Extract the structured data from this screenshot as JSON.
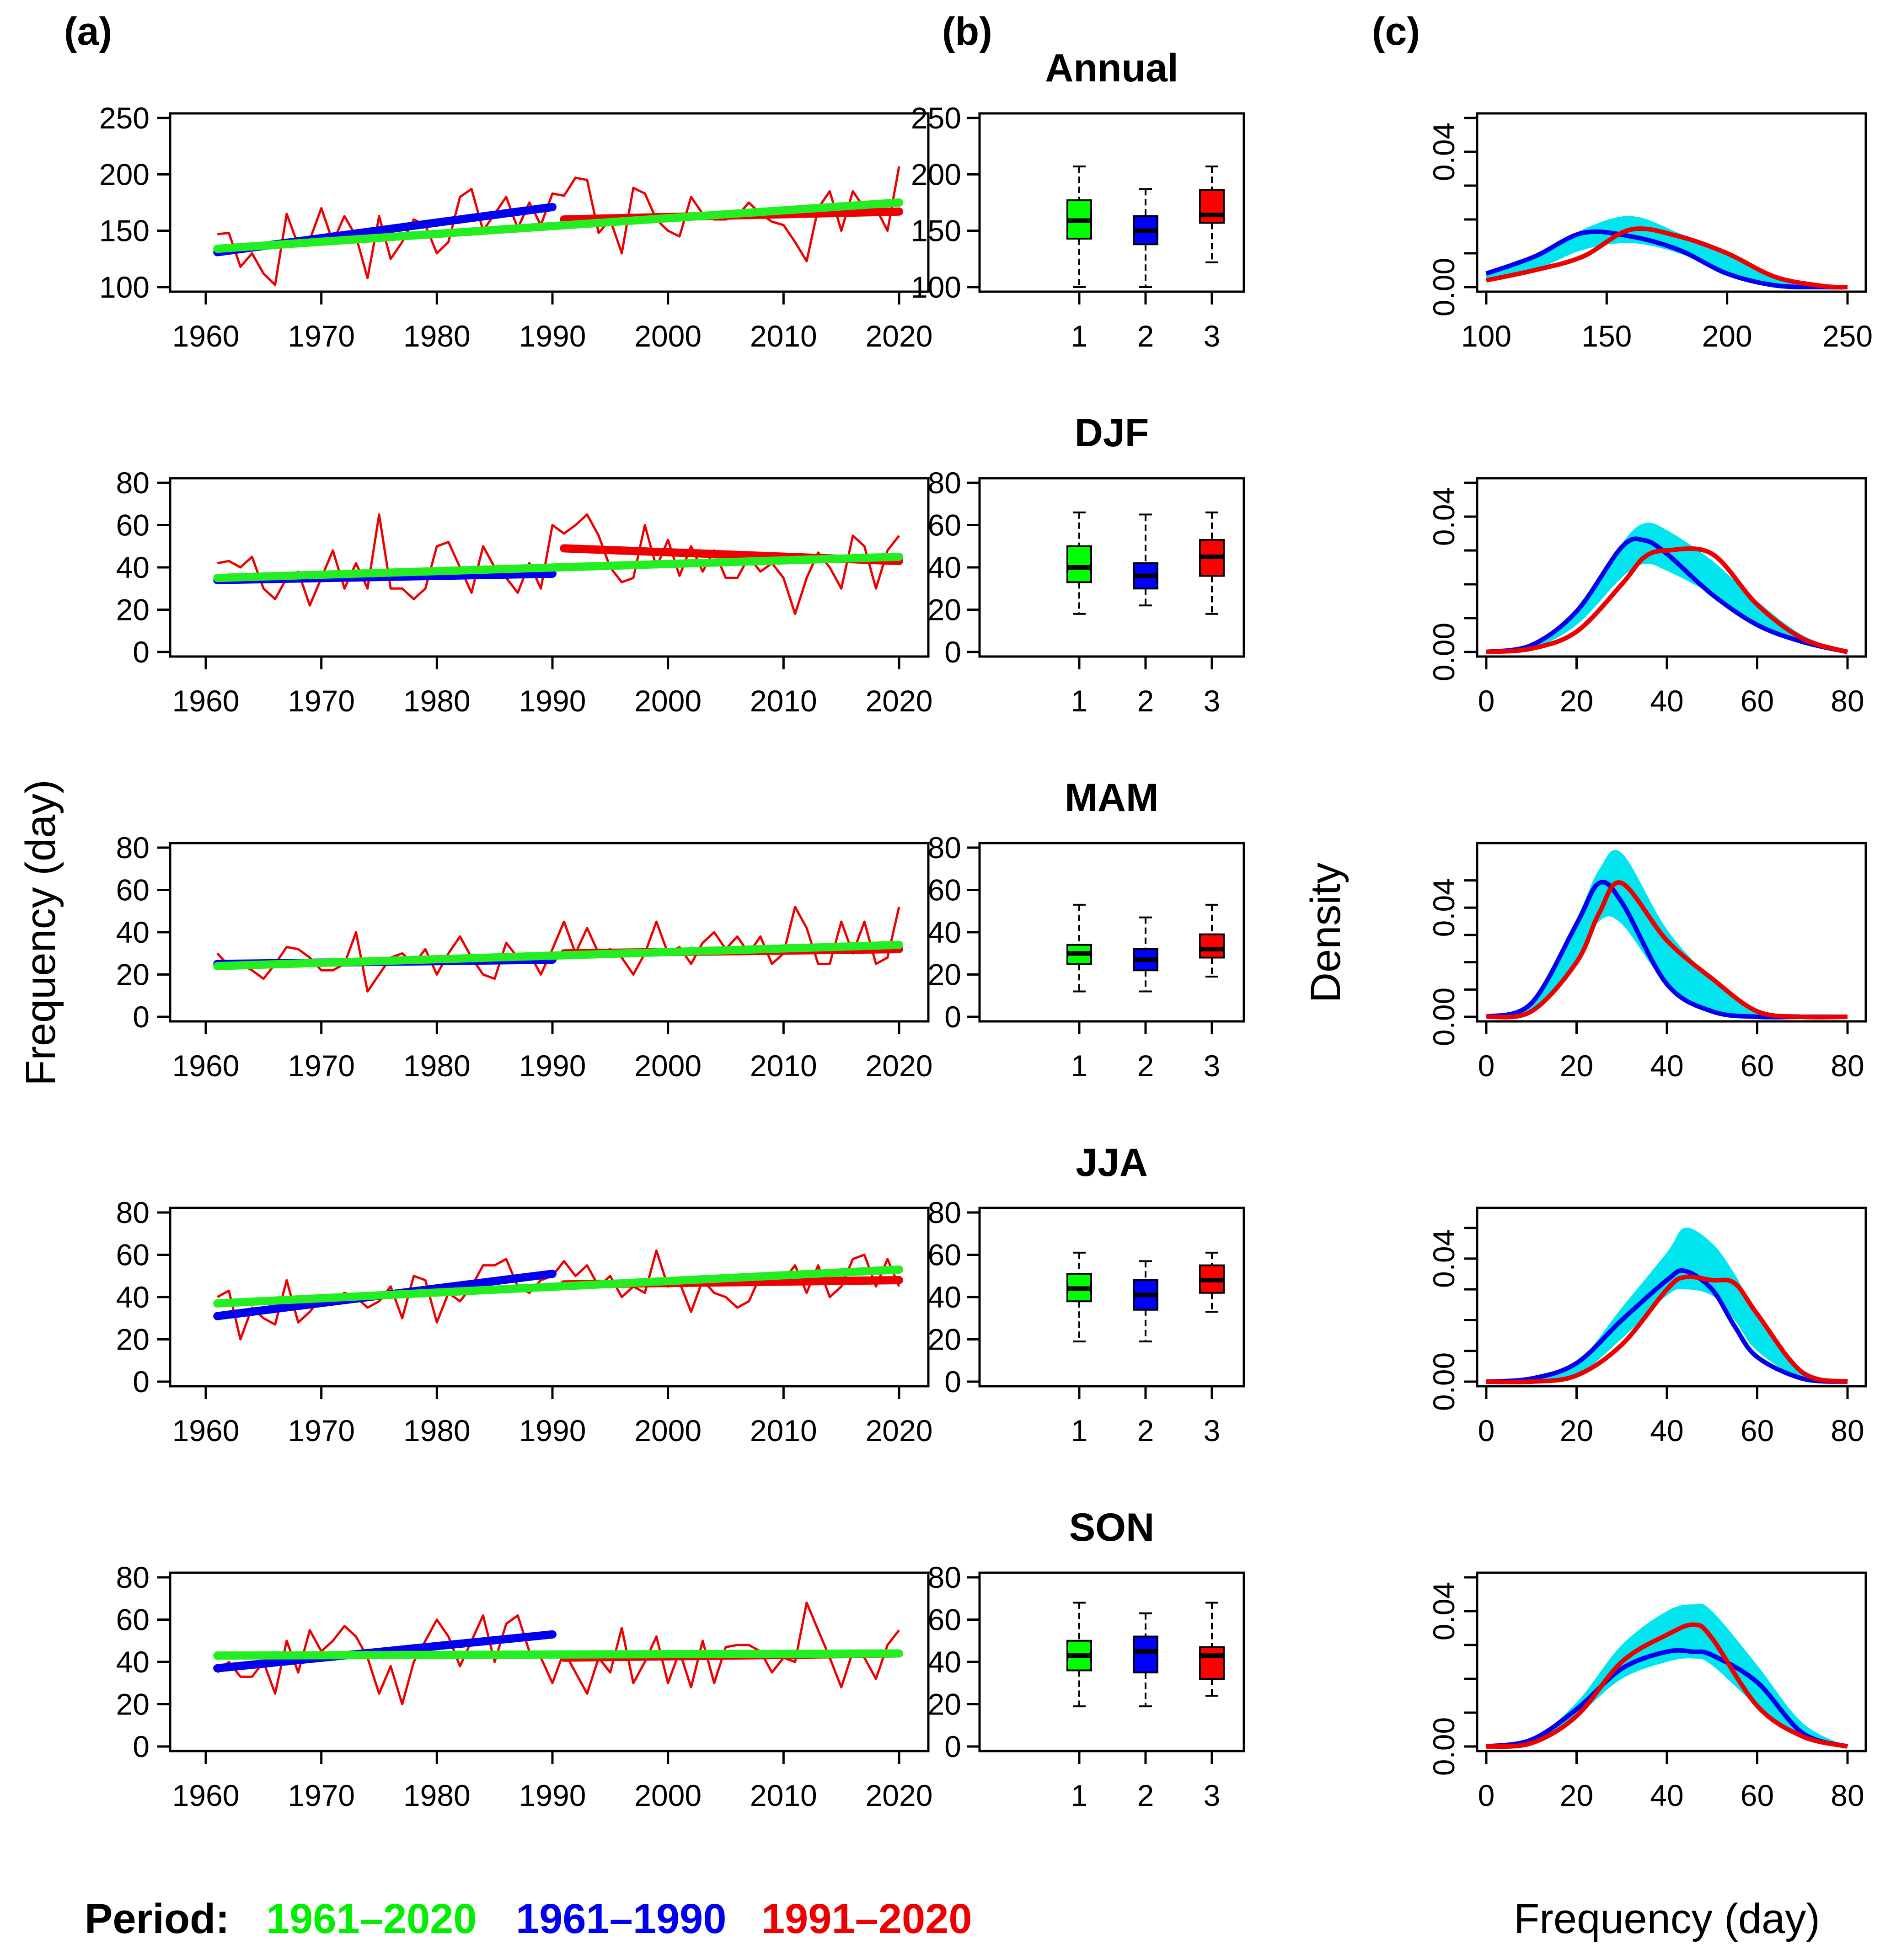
{
  "panel_labels": {
    "a": "(a)",
    "b": "(b)",
    "c": "(c)"
  },
  "ylabel_left": "Frequency (day)",
  "ylabel_density": "Density",
  "xlabel_density": "Frequency (day)",
  "legend": {
    "title": "Period:",
    "items": [
      {
        "label": "1961–2020",
        "color": "#00ee00"
      },
      {
        "label": "1961–1990",
        "color": "#0000ee"
      },
      {
        "label": "1991–2020",
        "color": "#ee0000"
      }
    ]
  },
  "colors": {
    "green": "#22ee22",
    "blue": "#0000ee",
    "red": "#ee0000",
    "cyan": "#00e5ee",
    "box_green": "#00ff00",
    "box_blue": "#0000ff",
    "box_red": "#ff0000"
  },
  "chart_data": [
    {
      "season": "Annual",
      "type": "line",
      "xlim": [
        1961,
        2020
      ],
      "xticks": [
        1960,
        1970,
        1980,
        1990,
        2000,
        2010,
        2020
      ],
      "ylim": [
        100,
        250
      ],
      "yticks": [
        100,
        150,
        200,
        250
      ],
      "series_annual": {
        "x_start": 1961,
        "values": [
          147,
          148,
          118,
          130,
          112,
          102,
          165,
          137,
          142,
          170,
          140,
          163,
          145,
          108,
          163,
          125,
          140,
          160,
          155,
          130,
          140,
          180,
          187,
          150,
          165,
          180,
          152,
          175,
          155,
          183,
          181,
          197,
          195,
          148,
          160,
          130,
          188,
          183,
          160,
          150,
          145,
          180,
          165,
          160,
          160,
          163,
          175,
          165,
          158,
          155,
          140,
          123,
          170,
          185,
          150,
          185,
          170,
          170,
          150,
          207
        ]
      },
      "trends": {
        "green": {
          "from": [
            1961,
            134
          ],
          "to": [
            2020,
            175
          ]
        },
        "blue": {
          "from": [
            1961,
            131
          ],
          "to": [
            1990,
            171
          ]
        },
        "red": {
          "from": [
            1991,
            160
          ],
          "to": [
            2020,
            167
          ]
        }
      },
      "boxplot": {
        "categories": [
          "1",
          "2",
          "3"
        ],
        "ylim": [
          100,
          250
        ],
        "yticks": [
          100,
          150,
          200,
          250
        ],
        "boxes": [
          {
            "min": 100,
            "q1": 143,
            "median": 159,
            "q3": 177,
            "max": 207
          },
          {
            "min": 100,
            "q1": 138,
            "median": 150,
            "q3": 163,
            "max": 187
          },
          {
            "min": 122,
            "q1": 157,
            "median": 164,
            "q3": 186,
            "max": 207
          }
        ]
      },
      "density": {
        "xlim": [
          100,
          250
        ],
        "xticks": [
          100,
          150,
          200,
          250
        ],
        "ylim": [
          0,
          0.05
        ],
        "yticks": [
          0.0,
          0.04
        ],
        "ytick_labels": [
          "0.00",
          "0.04"
        ],
        "x": [
          100,
          120,
          140,
          160,
          180,
          200,
          220,
          240,
          250
        ],
        "blue": [
          0.004,
          0.009,
          0.016,
          0.015,
          0.011,
          0.004,
          0.0005,
          0.0,
          0.0
        ],
        "red": [
          0.002,
          0.005,
          0.009,
          0.017,
          0.015,
          0.01,
          0.003,
          0.0003,
          0.0
        ],
        "cyan_lower": [
          0.002,
          0.005,
          0.011,
          0.013,
          0.01,
          0.004,
          0.0005,
          0.0,
          0.0
        ],
        "cyan_upper": [
          0.004,
          0.009,
          0.017,
          0.021,
          0.016,
          0.01,
          0.003,
          0.0003,
          0.0
        ]
      }
    },
    {
      "season": "DJF",
      "type": "line",
      "xlim": [
        1961,
        2020
      ],
      "xticks": [
        1960,
        1970,
        1980,
        1990,
        2000,
        2010,
        2020
      ],
      "ylim": [
        0,
        80
      ],
      "yticks": [
        0,
        20,
        40,
        60,
        80
      ],
      "series_annual": {
        "x_start": 1961,
        "values": [
          42,
          43,
          40,
          45,
          30,
          25,
          35,
          38,
          22,
          35,
          48,
          30,
          42,
          30,
          65,
          30,
          30,
          25,
          30,
          50,
          52,
          40,
          28,
          50,
          40,
          35,
          28,
          42,
          30,
          60,
          56,
          60,
          65,
          55,
          40,
          33,
          35,
          60,
          40,
          53,
          36,
          50,
          38,
          48,
          35,
          35,
          45,
          38,
          42,
          35,
          18,
          35,
          47,
          40,
          30,
          55,
          50,
          30,
          48,
          55
        ]
      },
      "trends": {
        "green": {
          "from": [
            1961,
            35
          ],
          "to": [
            2020,
            45
          ]
        },
        "blue": {
          "from": [
            1961,
            34
          ],
          "to": [
            1990,
            37
          ]
        },
        "red": {
          "from": [
            1991,
            49
          ],
          "to": [
            2020,
            43
          ]
        }
      },
      "boxplot": {
        "categories": [
          "1",
          "2",
          "3"
        ],
        "ylim": [
          0,
          80
        ],
        "yticks": [
          0,
          20,
          40,
          60,
          80
        ],
        "boxes": [
          {
            "min": 18,
            "q1": 33,
            "median": 40,
            "q3": 50,
            "max": 66
          },
          {
            "min": 22,
            "q1": 30,
            "median": 36,
            "q3": 42,
            "max": 65
          },
          {
            "min": 18,
            "q1": 36,
            "median": 45,
            "q3": 53,
            "max": 66
          }
        ]
      },
      "density": {
        "xlim": [
          0,
          80
        ],
        "xticks": [
          0,
          20,
          40,
          60,
          80
        ],
        "ylim": [
          0,
          0.05
        ],
        "yticks": [
          0.0,
          0.04
        ],
        "ytick_labels": [
          "0.00",
          "0.04"
        ],
        "x": [
          0,
          10,
          20,
          30,
          35,
          40,
          50,
          60,
          70,
          80
        ],
        "blue": [
          0.0,
          0.002,
          0.012,
          0.031,
          0.033,
          0.029,
          0.017,
          0.008,
          0.003,
          0.0
        ],
        "red": [
          0.0,
          0.001,
          0.006,
          0.02,
          0.028,
          0.03,
          0.029,
          0.014,
          0.004,
          0.0
        ],
        "cyan_lower": [
          0.0,
          0.001,
          0.008,
          0.022,
          0.026,
          0.024,
          0.017,
          0.008,
          0.003,
          0.0
        ],
        "cyan_upper": [
          0.0,
          0.002,
          0.012,
          0.032,
          0.038,
          0.036,
          0.027,
          0.015,
          0.005,
          0.0
        ]
      }
    },
    {
      "season": "MAM",
      "type": "line",
      "xlim": [
        1961,
        2020
      ],
      "xticks": [
        1960,
        1970,
        1980,
        1990,
        2000,
        2010,
        2020
      ],
      "ylim": [
        0,
        80
      ],
      "yticks": [
        0,
        20,
        40,
        60,
        80
      ],
      "series_annual": {
        "x_start": 1961,
        "values": [
          30,
          24,
          25,
          22,
          18,
          25,
          33,
          32,
          28,
          22,
          22,
          25,
          40,
          12,
          20,
          28,
          30,
          25,
          32,
          20,
          30,
          38,
          28,
          20,
          18,
          35,
          28,
          30,
          20,
          32,
          45,
          30,
          42,
          30,
          32,
          28,
          20,
          30,
          45,
          30,
          33,
          25,
          35,
          40,
          32,
          38,
          30,
          38,
          25,
          30,
          52,
          42,
          25,
          25,
          45,
          30,
          45,
          25,
          28,
          52
        ]
      },
      "trends": {
        "green": {
          "from": [
            1961,
            24
          ],
          "to": [
            2020,
            34
          ]
        },
        "blue": {
          "from": [
            1961,
            25
          ],
          "to": [
            1990,
            27
          ]
        },
        "red": {
          "from": [
            1991,
            30
          ],
          "to": [
            2020,
            32
          ]
        }
      },
      "boxplot": {
        "categories": [
          "1",
          "2",
          "3"
        ],
        "ylim": [
          0,
          80
        ],
        "yticks": [
          0,
          20,
          40,
          60,
          80
        ],
        "boxes": [
          {
            "min": 12,
            "q1": 25,
            "median": 30,
            "q3": 34,
            "max": 53
          },
          {
            "min": 12,
            "q1": 22,
            "median": 27,
            "q3": 32,
            "max": 47
          },
          {
            "min": 19,
            "q1": 28,
            "median": 32,
            "q3": 39,
            "max": 53
          }
        ]
      },
      "density": {
        "xlim": [
          0,
          80
        ],
        "xticks": [
          0,
          20,
          40,
          60,
          80
        ],
        "ylim": [
          0,
          0.062
        ],
        "yticks": [
          0.0,
          0.04
        ],
        "ytick_labels": [
          "0.00",
          "0.04"
        ],
        "x": [
          0,
          10,
          20,
          25,
          30,
          40,
          50,
          60,
          70,
          80
        ],
        "blue": [
          0.0,
          0.005,
          0.034,
          0.049,
          0.042,
          0.012,
          0.002,
          0.0,
          0.0,
          0.0
        ],
        "red": [
          0.0,
          0.002,
          0.02,
          0.038,
          0.049,
          0.028,
          0.014,
          0.002,
          0.0,
          0.0
        ],
        "cyan_lower": [
          0.0,
          0.002,
          0.02,
          0.035,
          0.034,
          0.012,
          0.002,
          0.0,
          0.0,
          0.0
        ],
        "cyan_upper": [
          0.0,
          0.005,
          0.036,
          0.054,
          0.06,
          0.032,
          0.014,
          0.002,
          0.0,
          0.0
        ]
      }
    },
    {
      "season": "JJA",
      "type": "line",
      "xlim": [
        1961,
        2020
      ],
      "xticks": [
        1960,
        1970,
        1980,
        1990,
        2000,
        2010,
        2020
      ],
      "ylim": [
        0,
        80
      ],
      "yticks": [
        0,
        20,
        40,
        60,
        80
      ],
      "series_annual": {
        "x_start": 1961,
        "values": [
          40,
          43,
          20,
          35,
          30,
          27,
          48,
          28,
          33,
          40,
          38,
          42,
          40,
          35,
          38,
          45,
          30,
          50,
          48,
          28,
          42,
          38,
          45,
          55,
          55,
          58,
          45,
          42,
          48,
          50,
          57,
          50,
          55,
          45,
          50,
          40,
          45,
          42,
          62,
          45,
          47,
          33,
          48,
          42,
          40,
          35,
          38,
          50,
          48,
          48,
          55,
          42,
          55,
          40,
          45,
          58,
          60,
          45,
          58,
          45
        ]
      },
      "trends": {
        "green": {
          "from": [
            1961,
            37
          ],
          "to": [
            2020,
            53
          ]
        },
        "blue": {
          "from": [
            1961,
            31
          ],
          "to": [
            1990,
            51
          ]
        },
        "red": {
          "from": [
            1991,
            46
          ],
          "to": [
            2020,
            48
          ]
        }
      },
      "boxplot": {
        "categories": [
          "1",
          "2",
          "3"
        ],
        "ylim": [
          0,
          80
        ],
        "yticks": [
          0,
          20,
          40,
          60,
          80
        ],
        "boxes": [
          {
            "min": 19,
            "q1": 38,
            "median": 44,
            "q3": 51,
            "max": 61
          },
          {
            "min": 19,
            "q1": 34,
            "median": 41,
            "q3": 48,
            "max": 57
          },
          {
            "min": 33,
            "q1": 42,
            "median": 48,
            "q3": 55,
            "max": 61
          }
        ]
      },
      "density": {
        "xlim": [
          0,
          80
        ],
        "xticks": [
          0,
          20,
          40,
          60,
          80
        ],
        "ylim": [
          0,
          0.055
        ],
        "yticks": [
          0.0,
          0.04
        ],
        "ytick_labels": [
          "0.00",
          "0.04"
        ],
        "x": [
          0,
          10,
          20,
          30,
          40,
          44,
          50,
          55,
          60,
          70,
          80
        ],
        "blue": [
          0.0,
          0.001,
          0.006,
          0.02,
          0.033,
          0.036,
          0.03,
          0.018,
          0.008,
          0.001,
          0.0
        ],
        "red": [
          0.0,
          0.0,
          0.002,
          0.012,
          0.03,
          0.034,
          0.033,
          0.032,
          0.022,
          0.003,
          0.0
        ],
        "cyan_lower": [
          0.0,
          0.0,
          0.002,
          0.014,
          0.028,
          0.03,
          0.028,
          0.02,
          0.01,
          0.001,
          0.0
        ],
        "cyan_upper": [
          0.0,
          0.001,
          0.006,
          0.024,
          0.042,
          0.05,
          0.045,
          0.035,
          0.022,
          0.004,
          0.0
        ]
      }
    },
    {
      "season": "SON",
      "type": "line",
      "xlim": [
        1961,
        2020
      ],
      "xticks": [
        1960,
        1970,
        1980,
        1990,
        2000,
        2010,
        2020
      ],
      "ylim": [
        0,
        80
      ],
      "yticks": [
        0,
        20,
        40,
        60,
        80
      ],
      "series_annual": {
        "x_start": 1961,
        "values": [
          35,
          40,
          33,
          33,
          40,
          25,
          50,
          35,
          55,
          45,
          50,
          57,
          52,
          42,
          25,
          38,
          20,
          40,
          50,
          60,
          52,
          38,
          50,
          62,
          40,
          58,
          62,
          45,
          42,
          30,
          45,
          35,
          25,
          42,
          35,
          56,
          30,
          40,
          52,
          30,
          45,
          28,
          50,
          30,
          47,
          48,
          48,
          45,
          35,
          42,
          40,
          68,
          55,
          42,
          28,
          45,
          42,
          32,
          48,
          55
        ]
      },
      "trends": {
        "green": {
          "from": [
            1961,
            43
          ],
          "to": [
            2020,
            44
          ]
        },
        "blue": {
          "from": [
            1961,
            37
          ],
          "to": [
            1990,
            53
          ]
        },
        "red": {
          "from": [
            1991,
            42
          ],
          "to": [
            2020,
            44
          ]
        }
      },
      "boxplot": {
        "categories": [
          "1",
          "2",
          "3"
        ],
        "ylim": [
          0,
          80
        ],
        "yticks": [
          0,
          20,
          40,
          60,
          80
        ],
        "boxes": [
          {
            "min": 19,
            "q1": 36,
            "median": 43,
            "q3": 50,
            "max": 68
          },
          {
            "min": 19,
            "q1": 35,
            "median": 45,
            "q3": 52,
            "max": 63
          },
          {
            "min": 24,
            "q1": 32,
            "median": 43,
            "q3": 47,
            "max": 68
          }
        ]
      },
      "density": {
        "xlim": [
          0,
          80
        ],
        "xticks": [
          0,
          20,
          40,
          60,
          80
        ],
        "ylim": [
          0,
          0.05
        ],
        "yticks": [
          0.0,
          0.04
        ],
        "ytick_labels": [
          "0.00",
          "0.04"
        ],
        "x": [
          0,
          10,
          20,
          30,
          40,
          46,
          50,
          60,
          70,
          80
        ],
        "blue": [
          0.0,
          0.002,
          0.011,
          0.023,
          0.028,
          0.028,
          0.027,
          0.019,
          0.004,
          0.0
        ],
        "red": [
          0.0,
          0.001,
          0.009,
          0.025,
          0.033,
          0.036,
          0.032,
          0.012,
          0.003,
          0.0
        ],
        "cyan_lower": [
          0.0,
          0.001,
          0.009,
          0.02,
          0.025,
          0.026,
          0.024,
          0.012,
          0.003,
          0.0
        ],
        "cyan_upper": [
          0.0,
          0.002,
          0.013,
          0.03,
          0.04,
          0.042,
          0.04,
          0.024,
          0.007,
          0.0
        ]
      }
    }
  ]
}
